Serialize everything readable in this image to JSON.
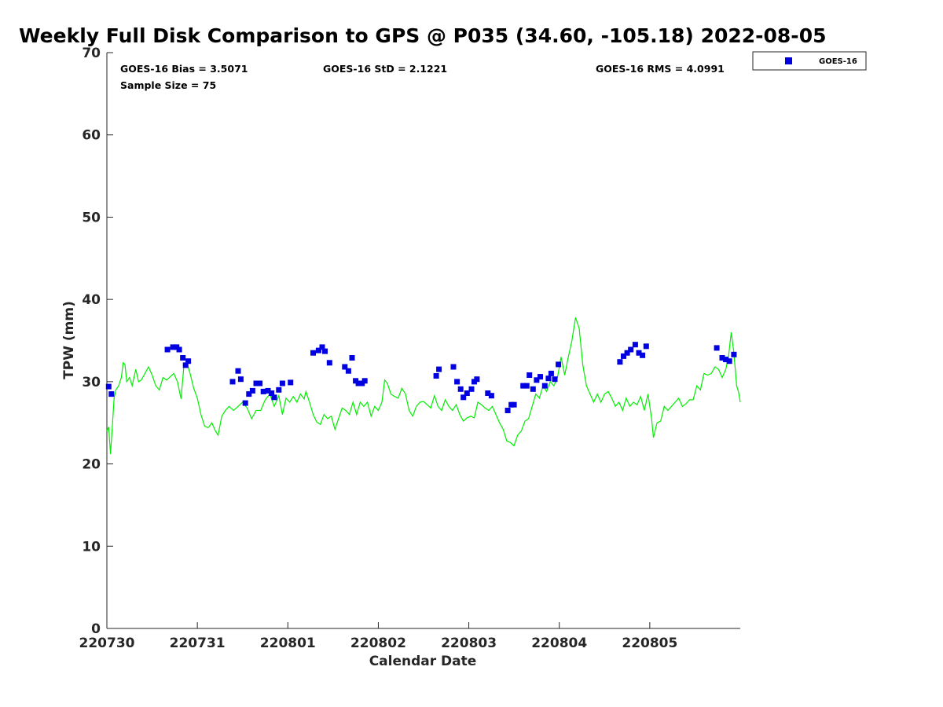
{
  "chart_data": {
    "type": "scatter",
    "title": "Weekly Full Disk Comparison to GPS @ P035 (34.60, -105.18) 2022-08-05",
    "xlabel": "Calendar Date",
    "ylabel": "TPW (mm)",
    "ylim": [
      0,
      70
    ],
    "yticks": [
      0,
      10,
      20,
      30,
      40,
      50,
      60,
      70
    ],
    "xlim": [
      0,
      7
    ],
    "xticks": [
      {
        "x": 0,
        "label": "220730"
      },
      {
        "x": 1,
        "label": "220731"
      },
      {
        "x": 2,
        "label": "220801"
      },
      {
        "x": 3,
        "label": "220802"
      },
      {
        "x": 4,
        "label": "220803"
      },
      {
        "x": 5,
        "label": "220804"
      },
      {
        "x": 6,
        "label": "220805"
      }
    ],
    "stats": {
      "bias": "GOES-16 Bias = 3.5071",
      "std": "GOES-16 StD = 2.1221",
      "rms": "GOES-16 RMS = 4.0991",
      "sample": "Sample Size = 75"
    },
    "legend": {
      "position": "top-right outside",
      "entries": [
        "GOES-16"
      ]
    },
    "series": [
      {
        "name": "GOES-16",
        "kind": "scatter",
        "marker": "square",
        "color": "#0000e0",
        "points": [
          [
            0.02,
            29.4
          ],
          [
            0.05,
            28.5
          ],
          [
            0.67,
            33.9
          ],
          [
            0.73,
            34.2
          ],
          [
            0.77,
            34.2
          ],
          [
            0.8,
            33.9
          ],
          [
            0.84,
            32.9
          ],
          [
            0.87,
            32.0
          ],
          [
            0.9,
            32.5
          ],
          [
            1.39,
            30.0
          ],
          [
            1.45,
            31.3
          ],
          [
            1.48,
            30.3
          ],
          [
            1.53,
            27.4
          ],
          [
            1.57,
            28.5
          ],
          [
            1.61,
            28.9
          ],
          [
            1.65,
            29.8
          ],
          [
            1.69,
            29.8
          ],
          [
            1.73,
            28.8
          ],
          [
            1.78,
            28.9
          ],
          [
            1.82,
            28.6
          ],
          [
            1.85,
            28.1
          ],
          [
            1.9,
            29.0
          ],
          [
            1.94,
            29.8
          ],
          [
            2.03,
            29.9
          ],
          [
            2.28,
            33.5
          ],
          [
            2.34,
            33.8
          ],
          [
            2.38,
            34.2
          ],
          [
            2.41,
            33.7
          ],
          [
            2.46,
            32.3
          ],
          [
            2.63,
            31.8
          ],
          [
            2.67,
            31.3
          ],
          [
            2.71,
            32.9
          ],
          [
            2.75,
            30.1
          ],
          [
            2.78,
            29.8
          ],
          [
            2.82,
            29.8
          ],
          [
            2.85,
            30.1
          ],
          [
            3.64,
            30.7
          ],
          [
            3.67,
            31.5
          ],
          [
            3.83,
            31.8
          ],
          [
            3.87,
            30.0
          ],
          [
            3.91,
            29.1
          ],
          [
            3.94,
            28.1
          ],
          [
            3.98,
            28.6
          ],
          [
            4.03,
            29.1
          ],
          [
            4.06,
            30.0
          ],
          [
            4.09,
            30.3
          ],
          [
            4.21,
            28.6
          ],
          [
            4.25,
            28.3
          ],
          [
            4.43,
            26.5
          ],
          [
            4.47,
            27.2
          ],
          [
            4.5,
            27.2
          ],
          [
            4.6,
            29.5
          ],
          [
            4.64,
            29.5
          ],
          [
            4.67,
            30.8
          ],
          [
            4.71,
            29.1
          ],
          [
            4.75,
            30.2
          ],
          [
            4.79,
            30.6
          ],
          [
            4.84,
            29.5
          ],
          [
            4.88,
            30.4
          ],
          [
            4.91,
            31.0
          ],
          [
            4.95,
            30.3
          ],
          [
            4.99,
            32.1
          ],
          [
            5.67,
            32.4
          ],
          [
            5.71,
            33.1
          ],
          [
            5.75,
            33.5
          ],
          [
            5.79,
            33.9
          ],
          [
            5.84,
            34.5
          ],
          [
            5.88,
            33.5
          ],
          [
            5.92,
            33.2
          ],
          [
            5.96,
            34.3
          ],
          [
            6.74,
            34.1
          ],
          [
            6.8,
            32.9
          ],
          [
            6.84,
            32.7
          ],
          [
            6.88,
            32.5
          ],
          [
            6.93,
            33.3
          ]
        ]
      },
      {
        "name": "GPS",
        "kind": "line",
        "color": "#00ee00",
        "points": [
          [
            0.0,
            24.0
          ],
          [
            0.02,
            24.5
          ],
          [
            0.04,
            21.2
          ],
          [
            0.06,
            24.5
          ],
          [
            0.08,
            28.0
          ],
          [
            0.1,
            29.0
          ],
          [
            0.13,
            29.5
          ],
          [
            0.16,
            30.5
          ],
          [
            0.18,
            32.3
          ],
          [
            0.2,
            32.1
          ],
          [
            0.22,
            30.0
          ],
          [
            0.25,
            30.5
          ],
          [
            0.28,
            29.5
          ],
          [
            0.32,
            31.5
          ],
          [
            0.35,
            30.0
          ],
          [
            0.38,
            30.2
          ],
          [
            0.42,
            31.0
          ],
          [
            0.46,
            31.8
          ],
          [
            0.5,
            30.8
          ],
          [
            0.54,
            29.5
          ],
          [
            0.58,
            29.0
          ],
          [
            0.62,
            30.5
          ],
          [
            0.66,
            30.2
          ],
          [
            0.7,
            30.6
          ],
          [
            0.74,
            31.0
          ],
          [
            0.78,
            30.0
          ],
          [
            0.82,
            27.9
          ],
          [
            0.85,
            31.8
          ],
          [
            0.88,
            32.5
          ],
          [
            0.92,
            31.0
          ],
          [
            0.96,
            29.2
          ],
          [
            1.0,
            28.0
          ],
          [
            1.04,
            26.0
          ],
          [
            1.08,
            24.6
          ],
          [
            1.12,
            24.4
          ],
          [
            1.16,
            25.0
          ],
          [
            1.2,
            24.0
          ],
          [
            1.23,
            23.5
          ],
          [
            1.27,
            25.8
          ],
          [
            1.31,
            26.5
          ],
          [
            1.35,
            27.0
          ],
          [
            1.4,
            26.5
          ],
          [
            1.45,
            27.0
          ],
          [
            1.5,
            27.5
          ],
          [
            1.55,
            26.8
          ],
          [
            1.6,
            25.5
          ],
          [
            1.65,
            26.5
          ],
          [
            1.7,
            26.5
          ],
          [
            1.75,
            27.8
          ],
          [
            1.8,
            28.5
          ],
          [
            1.85,
            27.0
          ],
          [
            1.9,
            28.3
          ],
          [
            1.94,
            26.0
          ],
          [
            1.98,
            28.0
          ],
          [
            2.02,
            27.5
          ],
          [
            2.06,
            28.2
          ],
          [
            2.1,
            27.5
          ],
          [
            2.14,
            28.5
          ],
          [
            2.18,
            27.9
          ],
          [
            2.2,
            28.8
          ],
          [
            2.24,
            27.5
          ],
          [
            2.28,
            26.0
          ],
          [
            2.32,
            25.1
          ],
          [
            2.36,
            24.8
          ],
          [
            2.4,
            26.0
          ],
          [
            2.44,
            25.5
          ],
          [
            2.48,
            25.8
          ],
          [
            2.52,
            24.2
          ],
          [
            2.56,
            25.5
          ],
          [
            2.6,
            26.8
          ],
          [
            2.64,
            26.5
          ],
          [
            2.68,
            26.0
          ],
          [
            2.72,
            27.5
          ],
          [
            2.76,
            26.0
          ],
          [
            2.8,
            27.5
          ],
          [
            2.84,
            27.0
          ],
          [
            2.88,
            27.5
          ],
          [
            2.92,
            25.8
          ],
          [
            2.96,
            27.0
          ],
          [
            3.0,
            26.5
          ],
          [
            3.04,
            27.5
          ],
          [
            3.07,
            30.2
          ],
          [
            3.1,
            29.8
          ],
          [
            3.14,
            28.5
          ],
          [
            3.18,
            28.2
          ],
          [
            3.22,
            28.0
          ],
          [
            3.26,
            29.2
          ],
          [
            3.3,
            28.5
          ],
          [
            3.34,
            26.5
          ],
          [
            3.38,
            25.8
          ],
          [
            3.42,
            27.0
          ],
          [
            3.46,
            27.5
          ],
          [
            3.5,
            27.6
          ],
          [
            3.54,
            27.2
          ],
          [
            3.58,
            26.8
          ],
          [
            3.62,
            28.3
          ],
          [
            3.66,
            27.0
          ],
          [
            3.7,
            26.5
          ],
          [
            3.74,
            27.8
          ],
          [
            3.78,
            27.0
          ],
          [
            3.82,
            26.5
          ],
          [
            3.86,
            27.2
          ],
          [
            3.9,
            26.0
          ],
          [
            3.94,
            25.2
          ],
          [
            3.98,
            25.6
          ],
          [
            4.02,
            25.8
          ],
          [
            4.06,
            25.6
          ],
          [
            4.1,
            27.5
          ],
          [
            4.14,
            27.2
          ],
          [
            4.18,
            26.8
          ],
          [
            4.22,
            26.5
          ],
          [
            4.26,
            27.0
          ],
          [
            4.3,
            26.0
          ],
          [
            4.34,
            25.0
          ],
          [
            4.38,
            24.2
          ],
          [
            4.42,
            22.8
          ],
          [
            4.46,
            22.6
          ],
          [
            4.5,
            22.2
          ],
          [
            4.54,
            23.5
          ],
          [
            4.58,
            24.0
          ],
          [
            4.62,
            25.2
          ],
          [
            4.66,
            25.5
          ],
          [
            4.7,
            27.0
          ],
          [
            4.74,
            28.5
          ],
          [
            4.78,
            28.0
          ],
          [
            4.82,
            29.5
          ],
          [
            4.86,
            28.8
          ],
          [
            4.9,
            30.0
          ],
          [
            4.94,
            29.5
          ],
          [
            4.98,
            30.5
          ],
          [
            5.02,
            33.0
          ],
          [
            5.06,
            30.8
          ],
          [
            5.1,
            33.0
          ],
          [
            5.14,
            35.0
          ],
          [
            5.18,
            37.8
          ],
          [
            5.22,
            36.5
          ],
          [
            5.26,
            32.0
          ],
          [
            5.3,
            29.5
          ],
          [
            5.34,
            28.5
          ],
          [
            5.38,
            27.5
          ],
          [
            5.42,
            28.5
          ],
          [
            5.46,
            27.5
          ],
          [
            5.5,
            28.5
          ],
          [
            5.54,
            28.8
          ],
          [
            5.58,
            28.0
          ],
          [
            5.62,
            27.0
          ],
          [
            5.66,
            27.5
          ],
          [
            5.7,
            26.5
          ],
          [
            5.74,
            28.0
          ],
          [
            5.78,
            27.0
          ],
          [
            5.82,
            27.5
          ],
          [
            5.86,
            27.2
          ],
          [
            5.9,
            28.2
          ],
          [
            5.94,
            26.5
          ],
          [
            5.98,
            28.5
          ],
          [
            6.02,
            25.5
          ],
          [
            6.04,
            23.2
          ],
          [
            6.08,
            25.0
          ],
          [
            6.12,
            25.2
          ],
          [
            6.16,
            27.0
          ],
          [
            6.2,
            26.5
          ],
          [
            6.24,
            27.0
          ],
          [
            6.28,
            27.5
          ],
          [
            6.32,
            28.0
          ],
          [
            6.36,
            27.0
          ],
          [
            6.4,
            27.3
          ],
          [
            6.44,
            27.8
          ],
          [
            6.48,
            27.8
          ],
          [
            6.52,
            29.5
          ],
          [
            6.56,
            29.0
          ],
          [
            6.6,
            31.0
          ],
          [
            6.64,
            30.8
          ],
          [
            6.68,
            31.0
          ],
          [
            6.72,
            31.8
          ],
          [
            6.76,
            31.5
          ],
          [
            6.8,
            30.5
          ],
          [
            6.84,
            31.5
          ],
          [
            6.87,
            33.0
          ],
          [
            6.9,
            36.0
          ],
          [
            6.93,
            33.5
          ],
          [
            6.96,
            29.5
          ],
          [
            6.98,
            28.8
          ],
          [
            7.0,
            27.5
          ]
        ]
      }
    ]
  }
}
